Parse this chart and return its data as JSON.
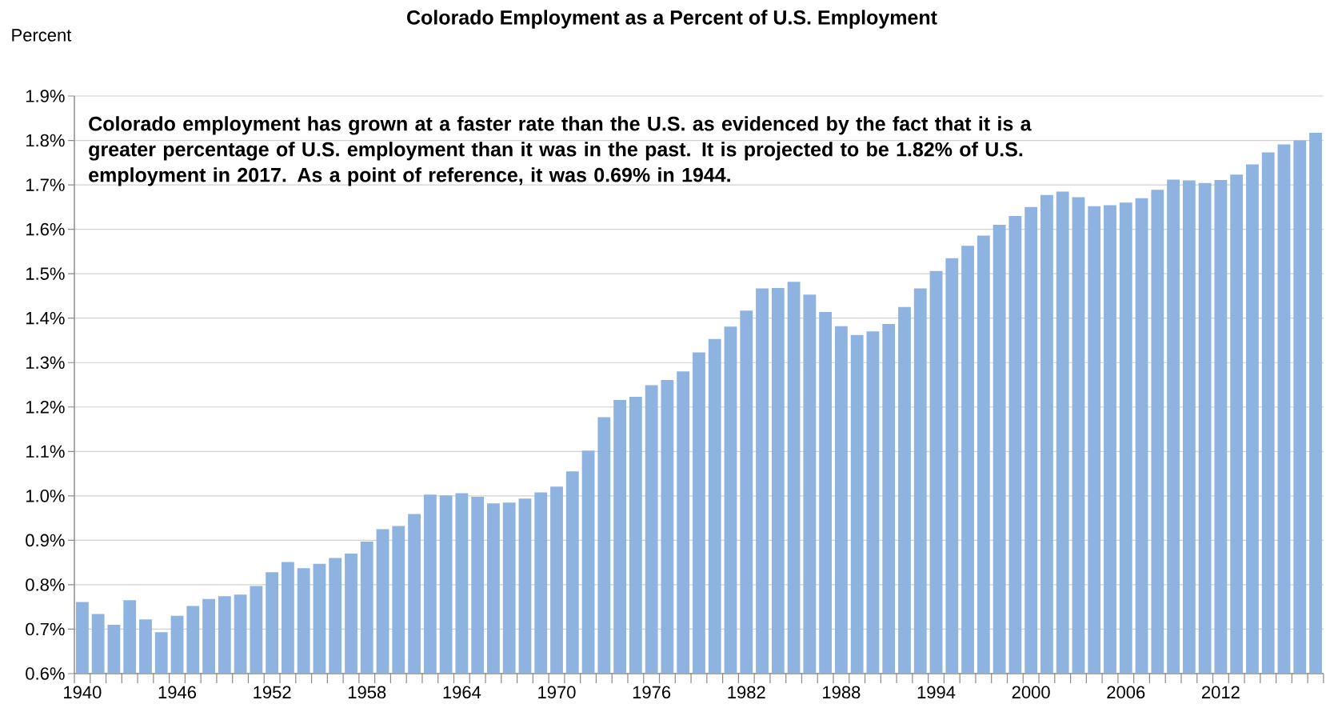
{
  "chart_data": {
    "type": "bar",
    "title": "Colorado Employment as a Percent of U.S. Employment",
    "ylabel": "Percent",
    "annotations": [
      "Colorado employment has grown at a faster rate than the U.S. as evidenced by the fact that it is a greater percentage of U.S. employment than it was in the past. It is projected to be 1.82% of U.S. employment in 2017. As a point of reference, it was 0.69% in 1944."
    ],
    "categories": [
      "1940",
      null,
      null,
      null,
      null,
      null,
      "1946",
      null,
      null,
      null,
      null,
      null,
      "1952",
      null,
      null,
      null,
      null,
      null,
      "1958",
      null,
      null,
      null,
      null,
      null,
      "1964",
      null,
      null,
      null,
      null,
      null,
      "1970",
      null,
      null,
      null,
      null,
      null,
      "1976",
      null,
      null,
      null,
      null,
      null,
      "1982",
      null,
      null,
      null,
      null,
      null,
      "1988",
      null,
      null,
      null,
      null,
      null,
      "1994",
      null,
      null,
      null,
      null,
      null,
      "2000",
      null,
      null,
      null,
      null,
      null,
      "2006",
      null,
      null,
      null,
      null,
      null,
      "2012",
      null,
      null,
      null,
      null,
      null,
      null
    ],
    "values": [
      0.761,
      0.734,
      0.71,
      0.765,
      0.722,
      0.693,
      0.73,
      0.752,
      0.768,
      0.774,
      0.778,
      0.797,
      0.828,
      0.851,
      0.837,
      0.847,
      0.86,
      0.87,
      0.897,
      0.925,
      0.932,
      0.959,
      1.003,
      1.001,
      1.006,
      0.998,
      0.983,
      0.985,
      0.994,
      1.008,
      1.021,
      1.055,
      1.102,
      1.177,
      1.216,
      1.223,
      1.249,
      1.261,
      1.28,
      1.323,
      1.353,
      1.381,
      1.417,
      1.467,
      1.468,
      1.482,
      1.453,
      1.414,
      1.382,
      1.362,
      1.37,
      1.387,
      1.425,
      1.467,
      1.506,
      1.535,
      1.563,
      1.586,
      1.61,
      1.63,
      1.65,
      1.677,
      1.685,
      1.672,
      1.652,
      1.654,
      1.66,
      1.67,
      1.689,
      1.712,
      1.71,
      1.704,
      1.711,
      1.723,
      1.746,
      1.773,
      1.791,
      1.8,
      1.817
    ],
    "color": "#8eb3e1",
    "ylim": [
      0.6,
      1.9
    ],
    "yticks": [
      {
        "value": 0.6,
        "label": "0.6%"
      },
      {
        "value": 0.7,
        "label": "0.7%"
      },
      {
        "value": 0.8,
        "label": "0.8%"
      },
      {
        "value": 0.9,
        "label": "0.9%"
      },
      {
        "value": 1.0,
        "label": "1.0%"
      },
      {
        "value": 1.1,
        "label": "1.1%"
      },
      {
        "value": 1.2,
        "label": "1.2%"
      },
      {
        "value": 1.3,
        "label": "1.3%"
      },
      {
        "value": 1.4,
        "label": "1.4%"
      },
      {
        "value": 1.5,
        "label": "1.5%"
      },
      {
        "value": 1.6,
        "label": "1.6%"
      },
      {
        "value": 1.7,
        "label": "1.7%"
      },
      {
        "value": 1.8,
        "label": "1.8%"
      },
      {
        "value": 1.9,
        "label": "1.9%"
      }
    ],
    "grid": "y"
  }
}
